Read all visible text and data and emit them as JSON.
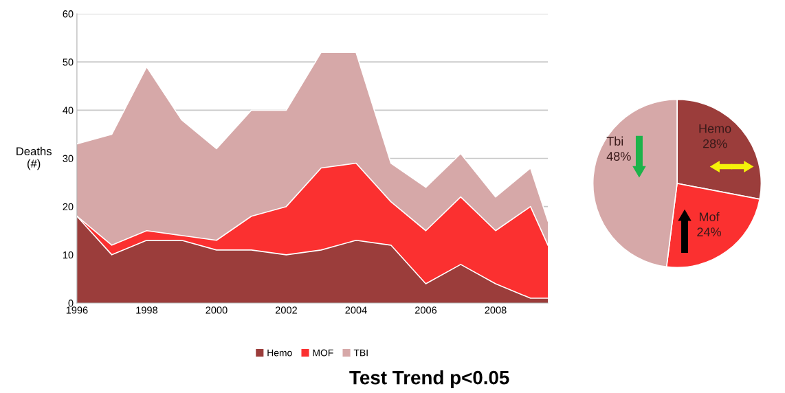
{
  "chart_data": [
    {
      "type": "area",
      "stacked": true,
      "x": [
        1996,
        1997,
        1998,
        1999,
        2000,
        2001,
        2002,
        2003,
        2004,
        2005,
        2006,
        2007,
        2008,
        2009,
        2009.5
      ],
      "series": [
        {
          "name": "Hemo",
          "color": "#9b3d3b",
          "values": [
            18,
            10,
            13,
            13,
            11,
            11,
            10,
            11,
            13,
            12,
            4,
            8,
            4,
            1,
            1
          ]
        },
        {
          "name": "MOF",
          "color": "#fb3030",
          "values": [
            0,
            2,
            2,
            1,
            2,
            7,
            10,
            17,
            16,
            9,
            11,
            14,
            11,
            19,
            11
          ]
        },
        {
          "name": "TBI",
          "color": "#d6a8a8",
          "values": [
            15,
            23,
            34,
            24,
            19,
            22,
            20,
            24,
            23,
            8,
            9,
            9,
            7,
            8,
            5
          ]
        }
      ],
      "ylabel": "Deaths\n(#)",
      "xlim": [
        1996,
        2009.5
      ],
      "xticks": [
        1996,
        1998,
        2000,
        2002,
        2004,
        2006,
        2008
      ],
      "ylim": [
        0,
        60
      ],
      "yticks": [
        0,
        10,
        20,
        30,
        40,
        50,
        60
      ],
      "grid": "y",
      "legend": "bottom",
      "annotations": [
        "Test Trend p<0.05"
      ]
    },
    {
      "type": "pie",
      "categories": [
        "Hemo",
        "Mof",
        "Tbi"
      ],
      "values": [
        28,
        24,
        48
      ],
      "colors": [
        "#9b3d3b",
        "#fb3030",
        "#d6a8a8"
      ],
      "value_labels": [
        "28%",
        "24%",
        "48%"
      ]
    }
  ]
}
